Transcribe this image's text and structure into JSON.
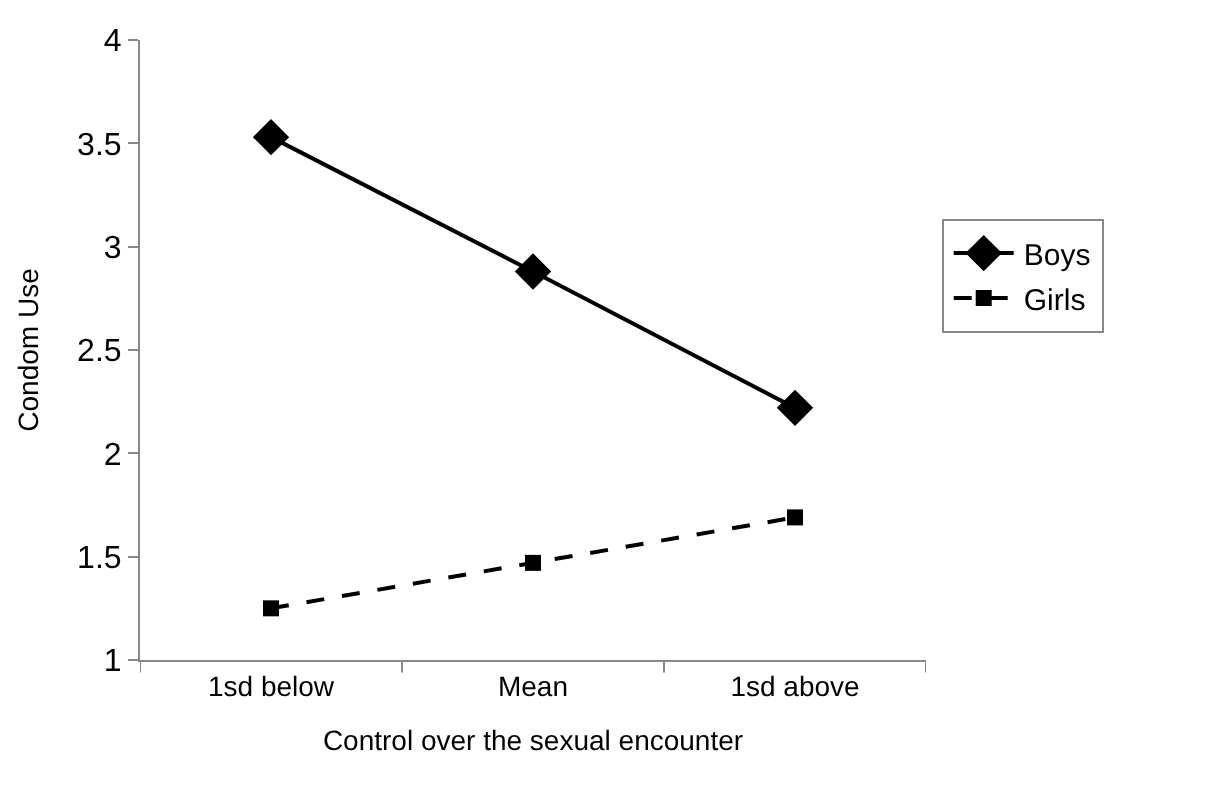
{
  "chart_data": {
    "type": "line",
    "xlabel": "Control over the sexual encounter",
    "ylabel": "Condom Use",
    "categories": [
      "1sd below",
      "Mean",
      "1sd above"
    ],
    "series": [
      {
        "name": "Boys",
        "color": "#000000",
        "values": [
          3.53,
          2.88,
          2.22
        ],
        "marker": "diamond",
        "line_style": "solid"
      },
      {
        "name": "Girls",
        "color": "#000000",
        "values": [
          1.25,
          1.47,
          1.69
        ],
        "marker": "square",
        "line_style": "dashed"
      }
    ],
    "ylim": [
      1,
      4
    ],
    "yticks": [
      1,
      1.5,
      2,
      2.5,
      3,
      3.5,
      4
    ],
    "legend": "right"
  }
}
